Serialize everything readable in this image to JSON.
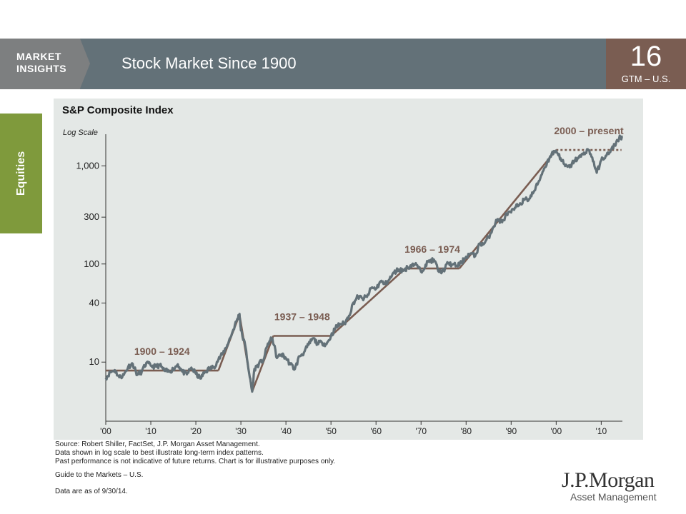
{
  "header": {
    "brand_line1": "MARKET",
    "brand_line2": "INSIGHTS",
    "title": "Stock Market Since 1900",
    "page_number": "16",
    "page_code": "GTM – U.S."
  },
  "side_tab": "Equities",
  "colors": {
    "series": "#637178",
    "trend": "#7a5d52",
    "panel": "#e4e8e6",
    "accent_green": "#7f9a3c"
  },
  "chart_data": {
    "type": "line",
    "title": "S&P Composite Index",
    "y_scale": "log",
    "y_scale_label": "Log Scale",
    "xlim": [
      1900,
      2014.7
    ],
    "ylim": [
      2.5,
      2100
    ],
    "y_ticks": [
      10,
      40,
      100,
      300,
      1000
    ],
    "y_tick_labels": [
      "10",
      "40",
      "100",
      "300",
      "1,000"
    ],
    "x_ticks": [
      1900,
      1910,
      1920,
      1930,
      1940,
      1950,
      1960,
      1970,
      1980,
      1990,
      2000,
      2010
    ],
    "x_tick_labels": [
      "'00",
      "'10",
      "'20",
      "'30",
      "'40",
      "'50",
      "'60",
      "'70",
      "'80",
      "'90",
      "'00",
      "'10"
    ],
    "grid": false,
    "series": [
      {
        "points": [
          [
            1900,
            6.9
          ],
          [
            1901,
            7.9
          ],
          [
            1902,
            8.3
          ],
          [
            1903,
            7.0
          ],
          [
            1904,
            7.4
          ],
          [
            1905,
            9.0
          ],
          [
            1906,
            9.6
          ],
          [
            1907,
            7.4
          ],
          [
            1908,
            8.0
          ],
          [
            1909,
            9.8
          ],
          [
            1910,
            9.2
          ],
          [
            1911,
            9.0
          ],
          [
            1912,
            9.3
          ],
          [
            1913,
            8.2
          ],
          [
            1914,
            8.0
          ],
          [
            1915,
            8.5
          ],
          [
            1916,
            9.5
          ],
          [
            1917,
            8.0
          ],
          [
            1918,
            7.5
          ],
          [
            1919,
            8.8
          ],
          [
            1920,
            7.6
          ],
          [
            1921,
            6.8
          ],
          [
            1922,
            7.9
          ],
          [
            1923,
            8.6
          ],
          [
            1924,
            8.9
          ],
          [
            1925,
            10.6
          ],
          [
            1926,
            12.2
          ],
          [
            1927,
            15.0
          ],
          [
            1928,
            19.5
          ],
          [
            1929,
            26.0
          ],
          [
            1929.7,
            31.0
          ],
          [
            1930,
            21.0
          ],
          [
            1931,
            14.5
          ],
          [
            1932,
            6.9
          ],
          [
            1932.5,
            5.0
          ],
          [
            1933,
            8.5
          ],
          [
            1934,
            9.6
          ],
          [
            1935,
            10.5
          ],
          [
            1936,
            15.5
          ],
          [
            1937,
            17.5
          ],
          [
            1938,
            11.0
          ],
          [
            1939,
            12.0
          ],
          [
            1940,
            11.0
          ],
          [
            1941,
            9.5
          ],
          [
            1942,
            8.5
          ],
          [
            1943,
            11.5
          ],
          [
            1944,
            12.5
          ],
          [
            1945,
            15.0
          ],
          [
            1946,
            17.5
          ],
          [
            1947,
            15.5
          ],
          [
            1948,
            15.8
          ],
          [
            1949,
            15.2
          ],
          [
            1950,
            18.4
          ],
          [
            1951,
            22.3
          ],
          [
            1952,
            24.5
          ],
          [
            1953,
            24.7
          ],
          [
            1954,
            29.7
          ],
          [
            1955,
            40.5
          ],
          [
            1956,
            46.6
          ],
          [
            1957,
            44.4
          ],
          [
            1958,
            46.2
          ],
          [
            1959,
            57.4
          ],
          [
            1960,
            55.8
          ],
          [
            1961,
            66.3
          ],
          [
            1962,
            62.4
          ],
          [
            1963,
            69.9
          ],
          [
            1964,
            81.4
          ],
          [
            1965,
            88.2
          ],
          [
            1966,
            85.3
          ],
          [
            1967,
            91.9
          ],
          [
            1968,
            98.7
          ],
          [
            1969,
            97.8
          ],
          [
            1970,
            83.2
          ],
          [
            1971,
            98.3
          ],
          [
            1972,
            109.2
          ],
          [
            1973,
            107.4
          ],
          [
            1974,
            82.9
          ],
          [
            1975,
            86.2
          ],
          [
            1976,
            102.0
          ],
          [
            1977,
            98.2
          ],
          [
            1978,
            96.0
          ],
          [
            1979,
            103.0
          ],
          [
            1980,
            118.8
          ],
          [
            1981,
            128.1
          ],
          [
            1982,
            119.7
          ],
          [
            1983,
            160.4
          ],
          [
            1984,
            160.5
          ],
          [
            1985,
            186.8
          ],
          [
            1986,
            236.3
          ],
          [
            1987,
            286.8
          ],
          [
            1988,
            265.8
          ],
          [
            1989,
            323.1
          ],
          [
            1990,
            335.0
          ],
          [
            1991,
            376.2
          ],
          [
            1992,
            415.7
          ],
          [
            1993,
            451.4
          ],
          [
            1994,
            460.4
          ],
          [
            1995,
            541.7
          ],
          [
            1996,
            670.5
          ],
          [
            1997,
            873.4
          ],
          [
            1998,
            1085.5
          ],
          [
            1999,
            1327.3
          ],
          [
            2000,
            1427.2
          ],
          [
            2001,
            1194.2
          ],
          [
            2002,
            993.9
          ],
          [
            2003,
            965.2
          ],
          [
            2004,
            1130.7
          ],
          [
            2005,
            1207.2
          ],
          [
            2006,
            1310.5
          ],
          [
            2007,
            1477.2
          ],
          [
            2008,
            1220.0
          ],
          [
            2009,
            850.0
          ],
          [
            2010,
            1139.0
          ],
          [
            2011,
            1268.0
          ],
          [
            2012,
            1379.0
          ],
          [
            2013,
            1643.0
          ],
          [
            2014,
            1931.0
          ],
          [
            2014.7,
            1968.0
          ]
        ]
      }
    ],
    "trend_segments": [
      {
        "label": "1900 – 1924",
        "points": [
          [
            1900,
            8.2
          ],
          [
            1925,
            8.2
          ]
        ],
        "style": "solid"
      },
      {
        "label": "",
        "points": [
          [
            1925,
            8.2
          ],
          [
            1929.7,
            30.5
          ],
          [
            1932.5,
            5.0
          ],
          [
            1937.2,
            18.5
          ]
        ],
        "style": "solid"
      },
      {
        "label": "1937 – 1948",
        "points": [
          [
            1937.2,
            18.5
          ],
          [
            1950,
            18.5
          ]
        ],
        "style": "solid"
      },
      {
        "label": "",
        "points": [
          [
            1950,
            18.5
          ],
          [
            1966.5,
            90.0
          ]
        ],
        "style": "solid"
      },
      {
        "label": "1966 – 1974",
        "points": [
          [
            1966.5,
            90.0
          ],
          [
            1978.5,
            90.0
          ]
        ],
        "style": "solid"
      },
      {
        "label": "",
        "points": [
          [
            1978.5,
            90.0
          ],
          [
            2000,
            1450.0
          ]
        ],
        "style": "solid"
      },
      {
        "label": "2000 – present",
        "points": [
          [
            2000,
            1450.0
          ],
          [
            2014.5,
            1450.0
          ]
        ],
        "style": "dotted"
      }
    ]
  },
  "footer": {
    "source": "Source: Robert Shiller, FactSet, J.P. Morgan Asset Management.",
    "note1": "Data shown in log scale to best illustrate long-term index patterns.",
    "note2": "Past performance is not indicative of future returns. Chart is for illustrative purposes only.",
    "guide": "Guide to the Markets – U.S.",
    "asof": "Data are as of 9/30/14."
  },
  "logo": {
    "brand": "J.P.Morgan",
    "subtitle": "Asset Management"
  }
}
